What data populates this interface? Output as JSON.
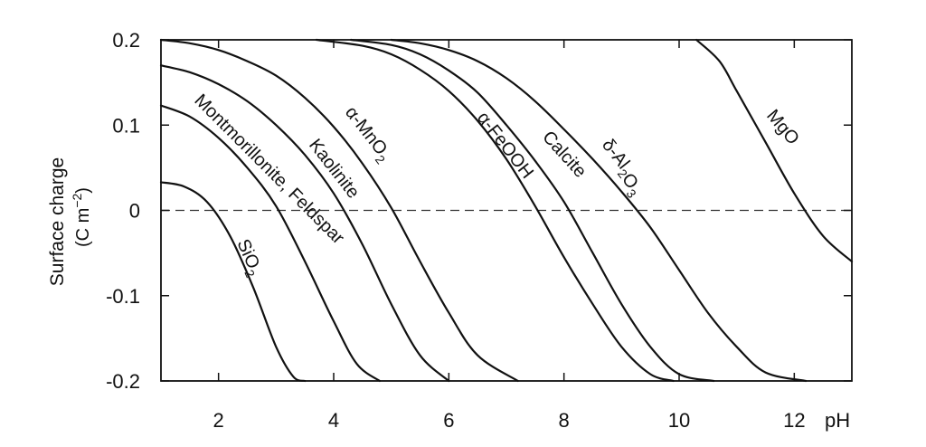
{
  "chart_data": {
    "type": "line",
    "title": "",
    "xlabel": "pH",
    "ylabel": "Surface charge",
    "ylabel_units": "(C m",
    "ylabel_units_sup": "−2",
    "ylabel_units_end": ")",
    "xlim": [
      1,
      13
    ],
    "ylim": [
      -0.2,
      0.2
    ],
    "x_ticks": [
      2,
      4,
      6,
      8,
      10,
      12
    ],
    "x_tick_labels": [
      "2",
      "4",
      "6",
      "8",
      "10",
      "12"
    ],
    "y_ticks": [
      0.2,
      0.1,
      0,
      -0.1,
      -0.2
    ],
    "y_tick_labels": [
      "0.2",
      "0.1",
      "0",
      "-0.1",
      "-0.2"
    ],
    "zero_reference_line": true,
    "grid": false,
    "legend": "none (curves labeled directly)",
    "series": [
      {
        "name": "SiO2",
        "label_main": "SiO",
        "label_sub": "2",
        "x": [
          1.0,
          1.4,
          1.8,
          2.2,
          2.6,
          3.0,
          3.3,
          3.5
        ],
        "values": [
          0.033,
          0.028,
          0.01,
          -0.03,
          -0.09,
          -0.16,
          -0.195,
          -0.2
        ]
      },
      {
        "name": "Montmorillonite, Feldspar",
        "label_main": "Montmorillonite, Feldspar",
        "label_sub": "",
        "x": [
          1.0,
          1.5,
          2.0,
          2.5,
          3.0,
          3.5,
          4.0,
          4.4,
          4.8
        ],
        "values": [
          0.123,
          0.11,
          0.085,
          0.05,
          0.005,
          -0.06,
          -0.13,
          -0.18,
          -0.2
        ]
      },
      {
        "name": "Kaolinite",
        "label_main": "Kaolinite",
        "label_sub": "",
        "x": [
          1.0,
          1.5,
          2.0,
          2.5,
          3.0,
          3.5,
          4.0,
          4.5,
          5.0,
          5.5,
          6.0
        ],
        "values": [
          0.17,
          0.162,
          0.148,
          0.128,
          0.1,
          0.065,
          0.02,
          -0.04,
          -0.11,
          -0.17,
          -0.2
        ]
      },
      {
        "name": "α-MnO2",
        "label_main": "α-MnO",
        "label_sub": "2",
        "x": [
          1.0,
          1.5,
          2.0,
          2.5,
          3.0,
          3.5,
          4.0,
          4.5,
          5.0,
          5.5,
          6.0,
          6.5,
          7.2
        ],
        "values": [
          0.2,
          0.196,
          0.188,
          0.175,
          0.158,
          0.132,
          0.098,
          0.055,
          0.003,
          -0.06,
          -0.12,
          -0.17,
          -0.2
        ]
      },
      {
        "name": "α-FeOOH",
        "label_main": "α-FeOOH",
        "label_sub": "",
        "x": [
          3.7,
          4.5,
          5.0,
          5.5,
          6.0,
          6.5,
          7.0,
          7.5,
          8.0,
          8.5,
          9.0,
          9.5,
          9.9
        ],
        "values": [
          0.2,
          0.193,
          0.183,
          0.165,
          0.14,
          0.105,
          0.06,
          0.005,
          -0.055,
          -0.11,
          -0.16,
          -0.192,
          -0.2
        ]
      },
      {
        "name": "Calcite",
        "label_main": "Calcite",
        "label_sub": "",
        "x": [
          4.3,
          5.0,
          5.5,
          6.0,
          6.5,
          7.0,
          7.5,
          8.0,
          8.5,
          9.0,
          9.5,
          10.0,
          10.6
        ],
        "values": [
          0.2,
          0.194,
          0.183,
          0.164,
          0.138,
          0.1,
          0.058,
          0.01,
          -0.05,
          -0.11,
          -0.16,
          -0.192,
          -0.2
        ]
      },
      {
        "name": "δ-Al2O3",
        "label_main": "δ-Al",
        "label_sub": "2",
        "label_main2": "O",
        "label_sub2": "3",
        "x": [
          5.0,
          5.5,
          6.0,
          6.5,
          7.0,
          7.5,
          8.0,
          8.5,
          9.0,
          9.5,
          10.0,
          10.5,
          11.0,
          11.5,
          12.2
        ],
        "values": [
          0.2,
          0.196,
          0.188,
          0.175,
          0.155,
          0.128,
          0.095,
          0.06,
          0.022,
          -0.02,
          -0.07,
          -0.12,
          -0.16,
          -0.19,
          -0.2
        ]
      },
      {
        "name": "MgO",
        "label_main": "MgO",
        "label_sub": "",
        "x": [
          10.3,
          10.7,
          11.0,
          11.5,
          12.0,
          12.5,
          13.0
        ],
        "values": [
          0.2,
          0.175,
          0.14,
          0.08,
          0.02,
          -0.03,
          -0.06
        ]
      }
    ]
  }
}
